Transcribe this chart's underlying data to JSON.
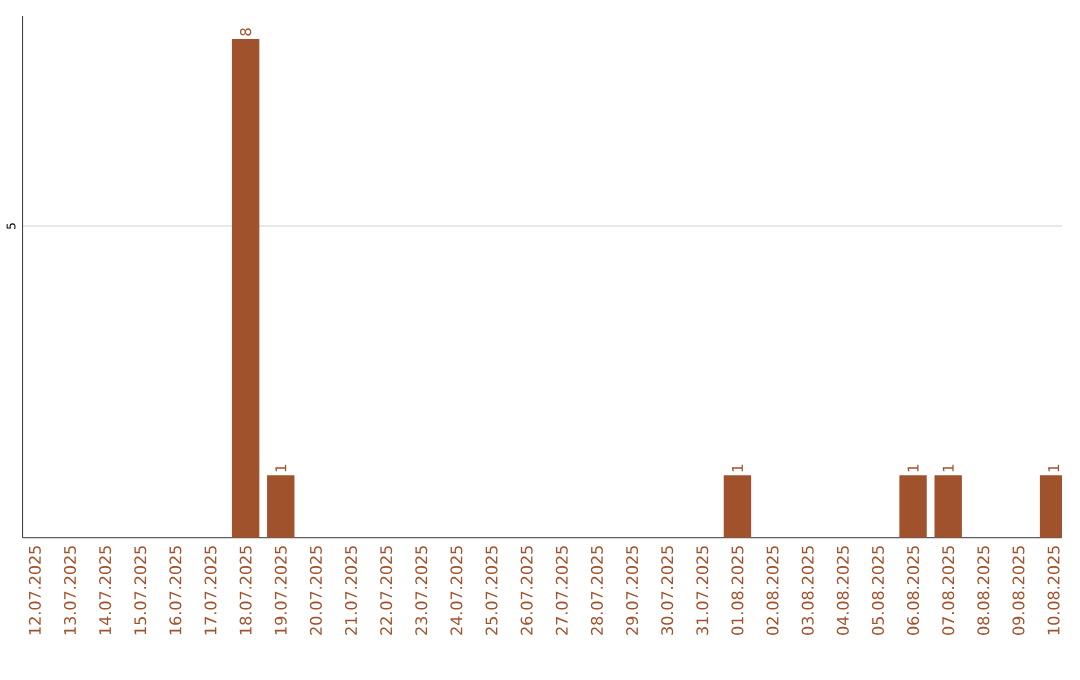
{
  "chart_data": {
    "type": "bar",
    "categories": [
      "12.07.2025",
      "13.07.2025",
      "14.07.2025",
      "15.07.2025",
      "16.07.2025",
      "17.07.2025",
      "18.07.2025",
      "19.07.2025",
      "20.07.2025",
      "21.07.2025",
      "22.07.2025",
      "23.07.2025",
      "24.07.2025",
      "25.07.2025",
      "26.07.2025",
      "27.07.2025",
      "28.07.2025",
      "29.07.2025",
      "30.07.2025",
      "31.07.2025",
      "01.08.2025",
      "02.08.2025",
      "03.08.2025",
      "04.08.2025",
      "05.08.2025",
      "06.08.2025",
      "07.08.2025",
      "08.08.2025",
      "09.08.2025",
      "10.08.2025"
    ],
    "values": [
      0,
      0,
      0,
      0,
      0,
      0,
      8,
      1,
      0,
      0,
      0,
      0,
      0,
      0,
      0,
      0,
      0,
      0,
      0,
      0,
      1,
      0,
      0,
      0,
      0,
      1,
      1,
      0,
      0,
      1
    ],
    "value_labels": [
      null,
      null,
      null,
      null,
      null,
      null,
      "8",
      "1",
      null,
      null,
      null,
      null,
      null,
      null,
      null,
      null,
      null,
      null,
      null,
      null,
      "1",
      null,
      null,
      null,
      null,
      "1",
      "1",
      null,
      null,
      "1"
    ],
    "color": "#a0522d",
    "ylim": [
      0,
      8.37
    ],
    "yticks": [
      5
    ],
    "grid": "y"
  }
}
